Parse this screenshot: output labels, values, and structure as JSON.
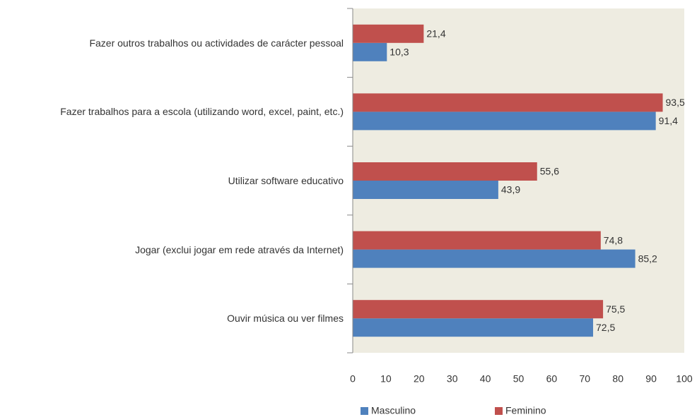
{
  "chart_data": {
    "type": "bar",
    "orientation": "horizontal",
    "categories": [
      "Fazer outros trabalhos ou actividades de carácter pessoal",
      "Fazer trabalhos para a escola (utilizando word, excel, paint, etc.)",
      "Utilizar software educativo",
      "Jogar (exclui jogar em rede através da Internet)",
      "Ouvir música ou ver filmes"
    ],
    "series": [
      {
        "name": "Masculino",
        "color": "#4f81bd",
        "values": [
          10.3,
          91.4,
          43.9,
          85.2,
          72.5
        ],
        "value_labels": [
          "10,3",
          "91,4",
          "43,9",
          "85,2",
          "72,5"
        ]
      },
      {
        "name": "Feminino",
        "color": "#c0504d",
        "values": [
          21.4,
          93.5,
          55.6,
          74.8,
          75.5
        ],
        "value_labels": [
          "21,4",
          "93,5",
          "55,6",
          "74,8",
          "75,5"
        ]
      }
    ],
    "xlim": [
      0,
      100
    ],
    "xticks": [
      0,
      10,
      20,
      30,
      40,
      50,
      60,
      70,
      80,
      90,
      100
    ],
    "legend": "bottom"
  }
}
